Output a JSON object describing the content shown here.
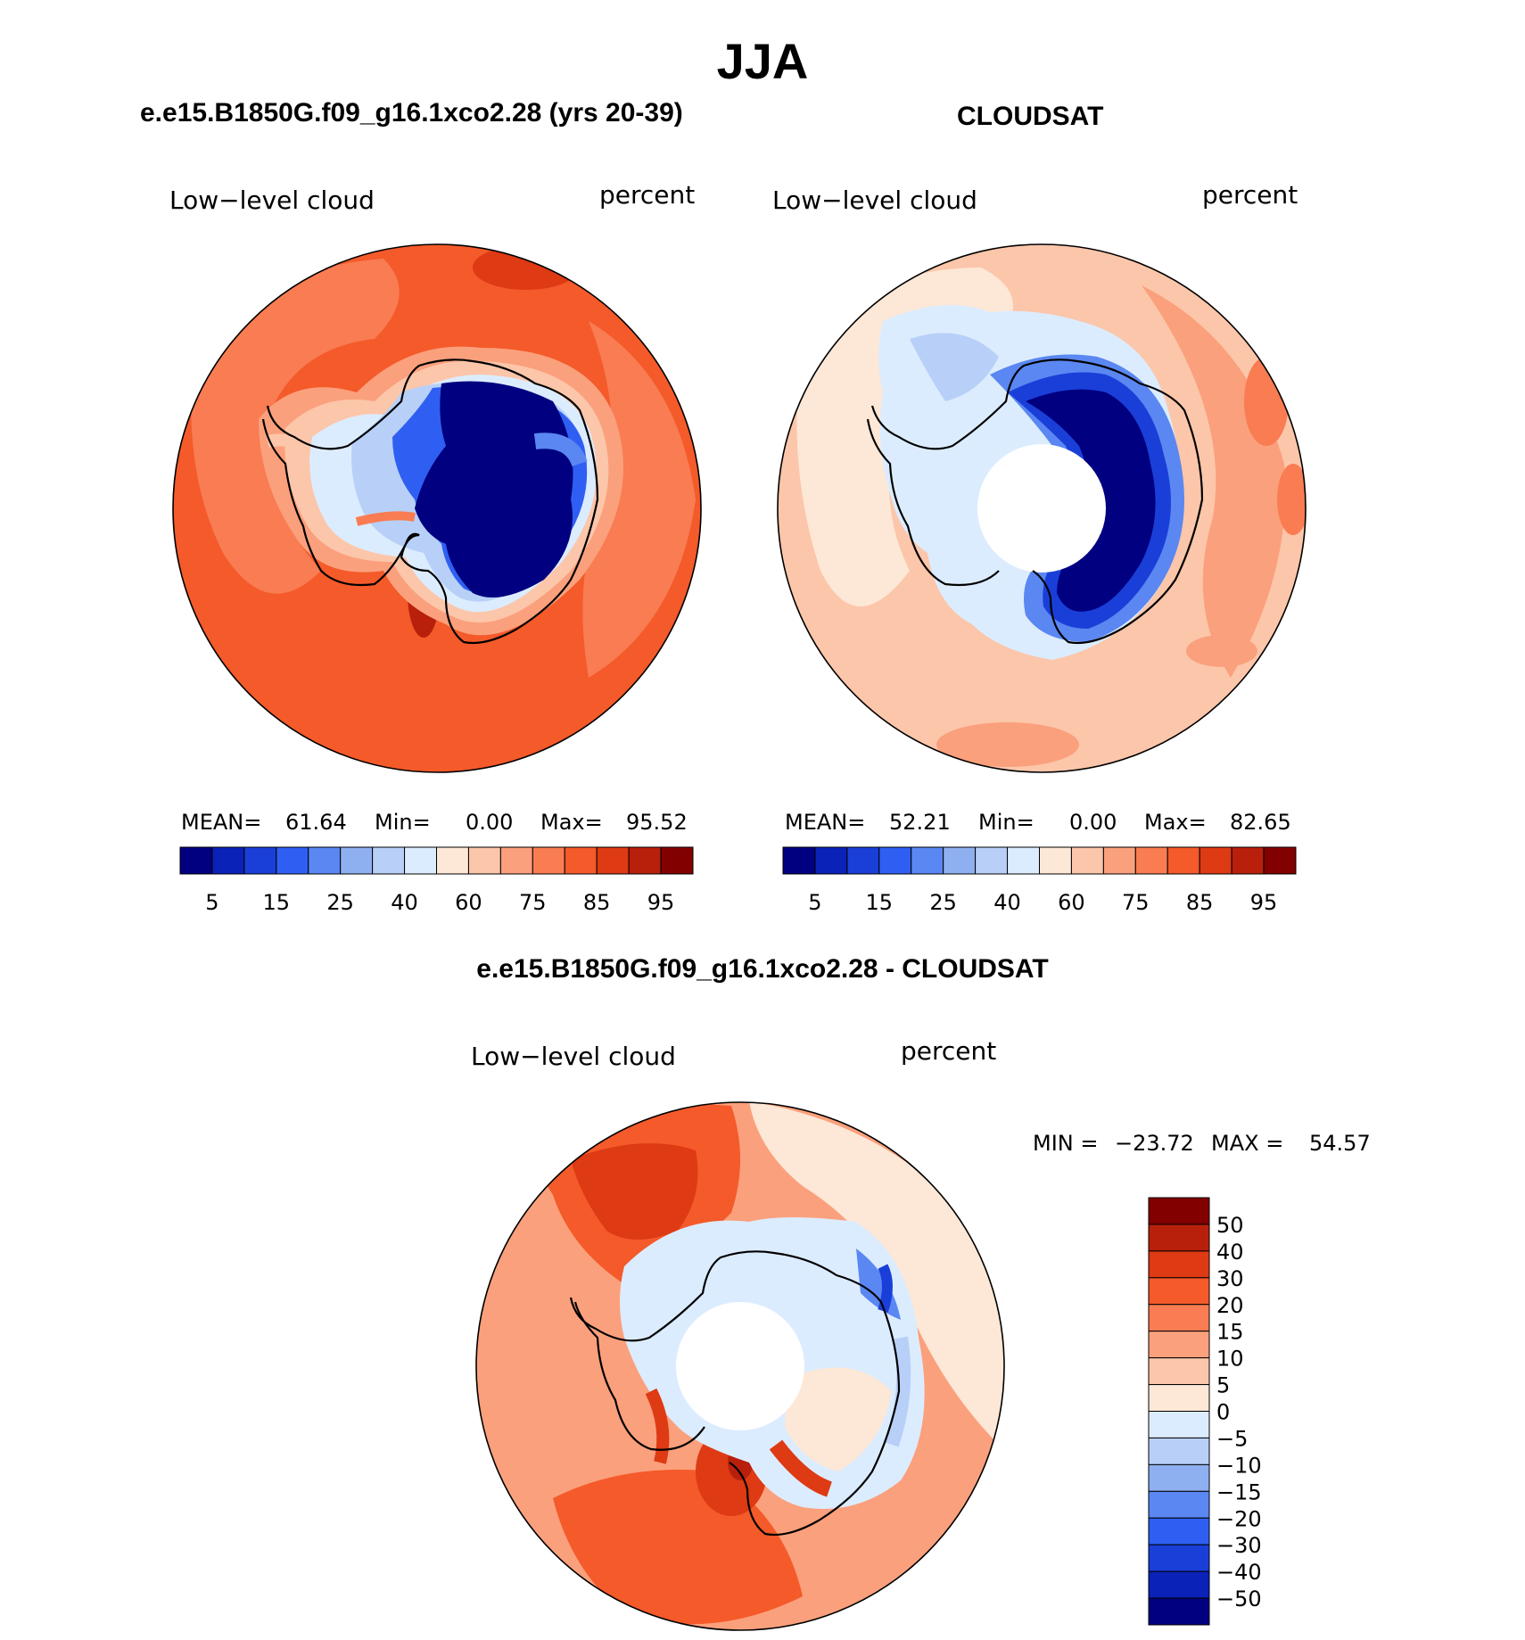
{
  "figure": {
    "title": "JJA",
    "colors": {
      "c1": "#000080",
      "c2": "#0a22b8",
      "c3": "#1a3fd8",
      "c4": "#2f5ff2",
      "c5": "#5a87f2",
      "c6": "#8fb0f0",
      "c7": "#b8d0f8",
      "c8": "#dcecff",
      "c9": "#fde7d6",
      "c10": "#fcc6aa",
      "c11": "#fba07c",
      "c12": "#f97c52",
      "c13": "#f45a2a",
      "c14": "#de3a14",
      "c15": "#b8200c",
      "c16": "#820000"
    }
  },
  "panel_model": {
    "title": "e.e15.B1850G.f09_g16.1xco2.28 (yrs 20-39)",
    "left_label": "Low−level cloud",
    "right_label": "percent",
    "stats": {
      "mean_label": "MEAN=",
      "mean": "61.64",
      "min_label": "Min=",
      "min": "0.00",
      "max_label": "Max=",
      "max": "95.52"
    }
  },
  "panel_obs": {
    "title": "CLOUDSAT",
    "left_label": "Low−level cloud",
    "right_label": "percent",
    "stats": {
      "mean_label": "MEAN=",
      "mean": "52.21",
      "min_label": "Min=",
      "min": "0.00",
      "max_label": "Max=",
      "max": "82.65"
    }
  },
  "panel_diff": {
    "title": "e.e15.B1850G.f09_g16.1xco2.28 - CLOUDSAT",
    "left_label": "Low−level cloud",
    "right_label": "percent",
    "stats": {
      "min_label": "MIN =",
      "min": "−23.72",
      "max_label": "MAX =",
      "max": "54.57"
    }
  },
  "colorbar_abs": {
    "ticks": [
      "5",
      "15",
      "25",
      "40",
      "60",
      "75",
      "85",
      "95"
    ]
  },
  "colorbar_diff": {
    "ticks": [
      "50",
      "40",
      "30",
      "20",
      "15",
      "10",
      "5",
      "0",
      "−5",
      "−10",
      "−15",
      "−20",
      "−30",
      "−40",
      "−50"
    ]
  }
}
